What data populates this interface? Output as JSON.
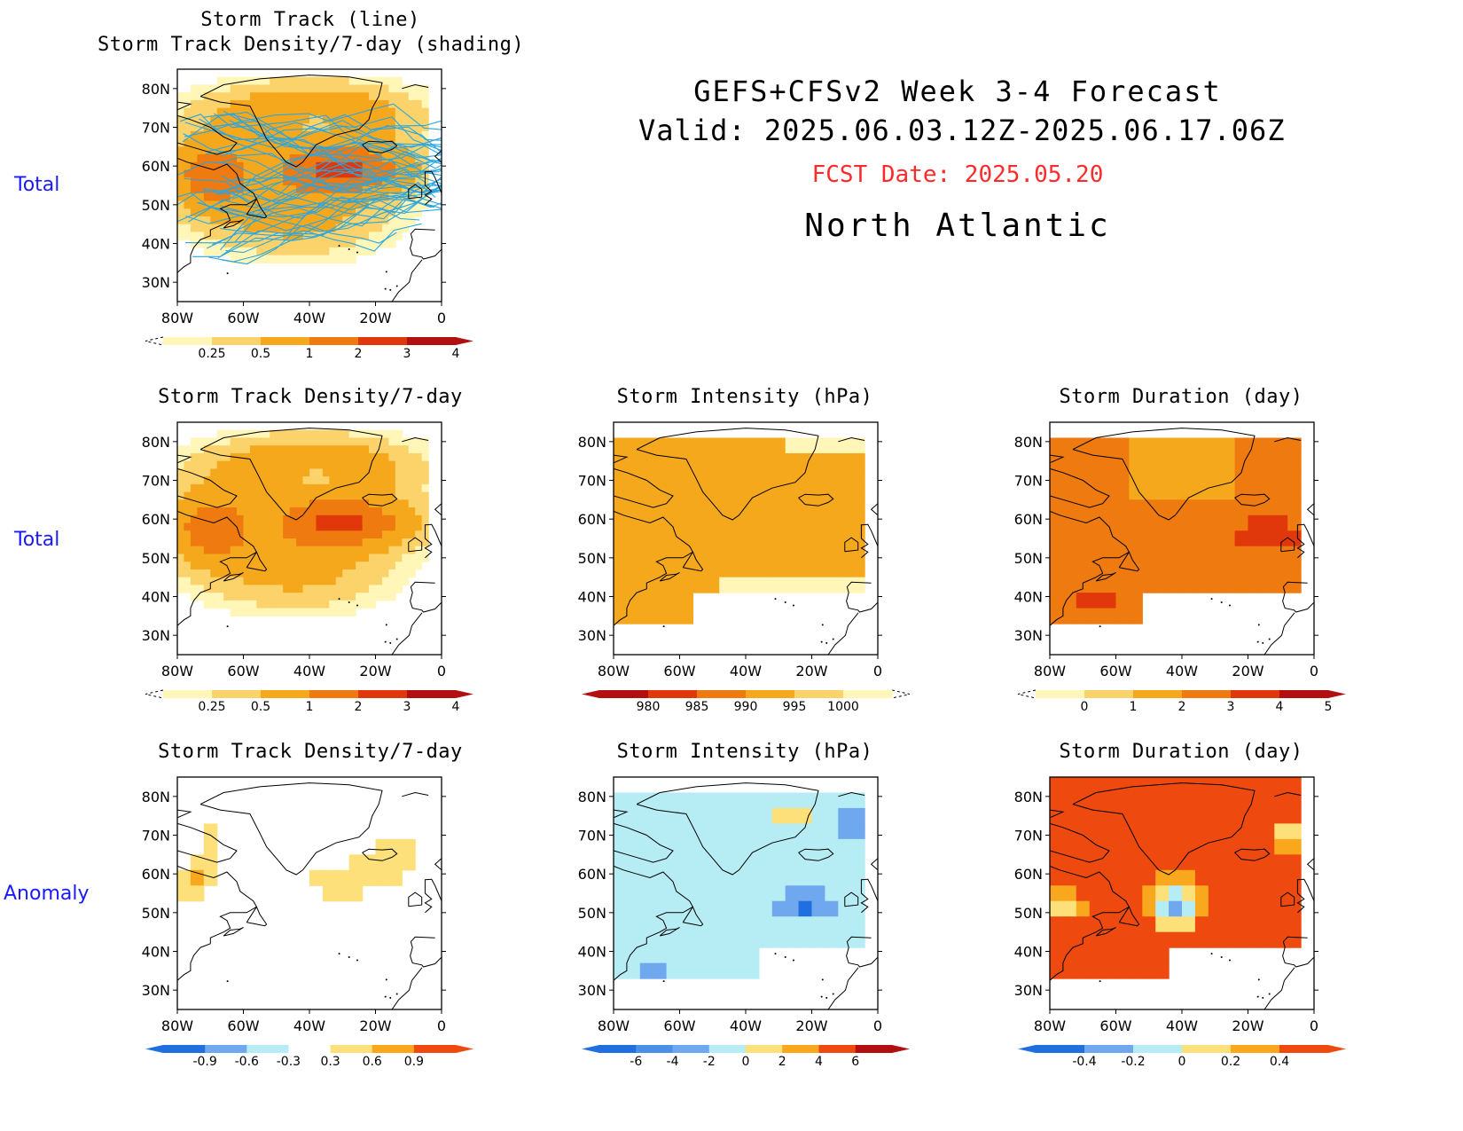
{
  "header": {
    "line1": "GEFS+CFSv2 Week 3-4 Forecast",
    "line2": "Valid: 2025.06.03.12Z-2025.06.17.06Z",
    "fcst_date": "FCST Date: 2025.05.20",
    "region": "North Atlantic",
    "fcst_color": "#ff2a2a"
  },
  "row_labels": [
    "Total",
    "Total",
    "Anomaly"
  ],
  "axes": {
    "lat_ticks": [
      "80N",
      "70N",
      "60N",
      "50N",
      "40N",
      "30N"
    ],
    "lon_ticks": [
      "80W",
      "60W",
      "40W",
      "20W",
      "0"
    ]
  },
  "panels": [
    {
      "id": "p-track",
      "title1": "Storm Track (line)",
      "title2": "Storm Track Density/7-day (shading)",
      "field": "density",
      "tracks": true,
      "colorbar": {
        "labels": [
          "0.25",
          "0.5",
          "1",
          "2",
          "3",
          "4"
        ],
        "colors": [
          "#fff6b8",
          "#fcd36a",
          "#f6a81d",
          "#ee7a10",
          "#e0380a",
          "#b21010"
        ],
        "left_open": true
      }
    },
    {
      "id": "p-density",
      "title1": "Storm Track Density/7-day",
      "field": "density",
      "tracks": false,
      "colorbar": {
        "labels": [
          "0.25",
          "0.5",
          "1",
          "2",
          "3",
          "4"
        ],
        "colors": [
          "#fff6b8",
          "#fcd36a",
          "#f6a81d",
          "#ee7a10",
          "#e0380a",
          "#b21010"
        ],
        "left_open": true
      }
    },
    {
      "id": "p-intensity",
      "title1": "Storm Intensity (hPa)",
      "field": "intensity",
      "tracks": false,
      "colorbar": {
        "labels": [
          "980",
          "985",
          "990",
          "995",
          "1000"
        ],
        "colors": [
          "#b21010",
          "#e0380a",
          "#ee7a10",
          "#f6a81d",
          "#fcd36a",
          "#fff6b8"
        ],
        "right_open": true
      }
    },
    {
      "id": "p-duration",
      "title1": "Storm Duration (day)",
      "field": "duration",
      "tracks": false,
      "colorbar": {
        "labels": [
          "0",
          "1",
          "2",
          "3",
          "4",
          "5"
        ],
        "colors": [
          "#fff6b8",
          "#fcd36a",
          "#f6a81d",
          "#ee7a10",
          "#e0380a",
          "#b21010"
        ],
        "left_open": true
      }
    },
    {
      "id": "p-density-anom",
      "title1": "Storm Track Density/7-day",
      "field": "density_anom",
      "tracks": false,
      "colorbar": {
        "labels": [
          "-0.9",
          "-0.6",
          "-0.3",
          "0.3",
          "0.6",
          "0.9"
        ],
        "colors": [
          "#1f6fe0",
          "#6fa8ee",
          "#b6ecf4",
          "#ffffff",
          "#fde07a",
          "#f9a81e",
          "#ee4a10"
        ],
        "diverging": true
      }
    },
    {
      "id": "p-intensity-anom",
      "title1": "Storm Intensity (hPa)",
      "field": "intensity_anom",
      "tracks": false,
      "colorbar": {
        "labels": [
          "-6",
          "-4",
          "-2",
          "0",
          "2",
          "4",
          "6"
        ],
        "colors": [
          "#1f6fe0",
          "#4a8fe8",
          "#6fa8ee",
          "#b6ecf4",
          "#fde07a",
          "#f9a81e",
          "#ee4a10",
          "#b21010"
        ],
        "diverging": true
      }
    },
    {
      "id": "p-duration-anom",
      "title1": "Storm Duration (day)",
      "field": "duration_anom",
      "tracks": false,
      "colorbar": {
        "labels": [
          "-0.4",
          "-0.2",
          "0",
          "0.2",
          "0.4"
        ],
        "colors": [
          "#1f6fe0",
          "#6fa8ee",
          "#b6ecf4",
          "#fde07a",
          "#f9a81e",
          "#ee4a10"
        ],
        "diverging": true
      }
    }
  ]
}
